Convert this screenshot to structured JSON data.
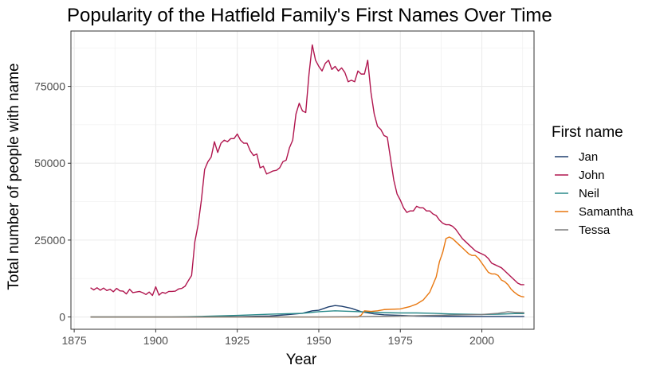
{
  "chart_data": {
    "type": "line",
    "title": "Popularity of the Hatfield Family's First Names Over Time",
    "xlabel": "Year",
    "ylabel": "Total number of people with name",
    "xlim": [
      1874,
      2016
    ],
    "ylim": [
      -4000,
      93000
    ],
    "x_ticks": [
      1875,
      1900,
      1925,
      1950,
      1975,
      2000
    ],
    "y_ticks": [
      0,
      25000,
      50000,
      75000
    ],
    "grid": true,
    "legend_title": "First name",
    "legend_position": "right",
    "series": [
      {
        "name": "Jan",
        "color": "#1f3f6e",
        "points": [
          [
            1880,
            0
          ],
          [
            1910,
            0
          ],
          [
            1925,
            100
          ],
          [
            1935,
            300
          ],
          [
            1940,
            700
          ],
          [
            1945,
            1200
          ],
          [
            1948,
            2000
          ],
          [
            1950,
            2200
          ],
          [
            1953,
            3300
          ],
          [
            1955,
            3700
          ],
          [
            1957,
            3500
          ],
          [
            1960,
            2800
          ],
          [
            1963,
            1700
          ],
          [
            1967,
            1000
          ],
          [
            1970,
            700
          ],
          [
            1975,
            500
          ],
          [
            1980,
            300
          ],
          [
            1990,
            200
          ],
          [
            2000,
            150
          ],
          [
            2013,
            150
          ]
        ]
      },
      {
        "name": "John",
        "color": "#b0154e",
        "points": [
          [
            1880,
            9500
          ],
          [
            1881,
            8800
          ],
          [
            1882,
            9500
          ],
          [
            1883,
            8700
          ],
          [
            1884,
            9400
          ],
          [
            1885,
            8600
          ],
          [
            1886,
            9000
          ],
          [
            1887,
            8200
          ],
          [
            1888,
            9300
          ],
          [
            1889,
            8500
          ],
          [
            1890,
            8400
          ],
          [
            1891,
            7500
          ],
          [
            1892,
            9000
          ],
          [
            1893,
            7900
          ],
          [
            1894,
            8100
          ],
          [
            1895,
            8300
          ],
          [
            1896,
            7900
          ],
          [
            1897,
            7300
          ],
          [
            1898,
            8100
          ],
          [
            1899,
            7000
          ],
          [
            1900,
            9800
          ],
          [
            1901,
            7100
          ],
          [
            1902,
            8000
          ],
          [
            1903,
            7700
          ],
          [
            1904,
            8300
          ],
          [
            1905,
            8300
          ],
          [
            1906,
            8400
          ],
          [
            1907,
            9100
          ],
          [
            1908,
            9300
          ],
          [
            1909,
            10000
          ],
          [
            1910,
            11800
          ],
          [
            1911,
            13500
          ],
          [
            1912,
            24500
          ],
          [
            1913,
            30000
          ],
          [
            1914,
            38000
          ],
          [
            1915,
            48000
          ],
          [
            1916,
            50500
          ],
          [
            1917,
            52000
          ],
          [
            1918,
            57000
          ],
          [
            1919,
            53500
          ],
          [
            1920,
            56500
          ],
          [
            1921,
            57500
          ],
          [
            1922,
            57000
          ],
          [
            1923,
            58000
          ],
          [
            1924,
            58000
          ],
          [
            1925,
            59500
          ],
          [
            1926,
            57500
          ],
          [
            1927,
            56500
          ],
          [
            1928,
            56500
          ],
          [
            1929,
            54000
          ],
          [
            1930,
            52500
          ],
          [
            1931,
            53000
          ],
          [
            1932,
            48500
          ],
          [
            1933,
            49000
          ],
          [
            1934,
            46500
          ],
          [
            1935,
            47000
          ],
          [
            1936,
            47500
          ],
          [
            1937,
            47700
          ],
          [
            1938,
            48500
          ],
          [
            1939,
            50500
          ],
          [
            1940,
            51000
          ],
          [
            1941,
            55000
          ],
          [
            1942,
            57500
          ],
          [
            1943,
            66000
          ],
          [
            1944,
            69500
          ],
          [
            1945,
            67000
          ],
          [
            1946,
            66500
          ],
          [
            1947,
            79000
          ],
          [
            1948,
            88500
          ],
          [
            1949,
            83500
          ],
          [
            1950,
            81500
          ],
          [
            1951,
            80000
          ],
          [
            1952,
            82500
          ],
          [
            1953,
            83500
          ],
          [
            1954,
            80500
          ],
          [
            1955,
            81500
          ],
          [
            1956,
            80000
          ],
          [
            1957,
            81000
          ],
          [
            1958,
            79500
          ],
          [
            1959,
            76500
          ],
          [
            1960,
            77000
          ],
          [
            1961,
            76500
          ],
          [
            1962,
            80000
          ],
          [
            1963,
            79000
          ],
          [
            1964,
            79000
          ],
          [
            1965,
            83500
          ],
          [
            1966,
            73000
          ],
          [
            1967,
            66000
          ],
          [
            1968,
            62000
          ],
          [
            1969,
            61000
          ],
          [
            1970,
            59000
          ],
          [
            1971,
            58500
          ],
          [
            1972,
            51500
          ],
          [
            1973,
            44500
          ],
          [
            1974,
            40000
          ],
          [
            1975,
            38000
          ],
          [
            1976,
            35500
          ],
          [
            1977,
            34000
          ],
          [
            1978,
            34500
          ],
          [
            1979,
            34500
          ],
          [
            1980,
            36000
          ],
          [
            1981,
            35500
          ],
          [
            1982,
            35500
          ],
          [
            1983,
            34500
          ],
          [
            1984,
            34500
          ],
          [
            1985,
            33500
          ],
          [
            1986,
            33000
          ],
          [
            1987,
            31500
          ],
          [
            1988,
            30500
          ],
          [
            1989,
            30000
          ],
          [
            1990,
            30000
          ],
          [
            1991,
            29500
          ],
          [
            1992,
            28500
          ],
          [
            1993,
            27000
          ],
          [
            1994,
            25500
          ],
          [
            1995,
            24500
          ],
          [
            1996,
            23500
          ],
          [
            1997,
            22500
          ],
          [
            1998,
            21500
          ],
          [
            1999,
            21000
          ],
          [
            2000,
            20500
          ],
          [
            2001,
            20000
          ],
          [
            2002,
            19000
          ],
          [
            2003,
            17500
          ],
          [
            2004,
            17000
          ],
          [
            2005,
            16500
          ],
          [
            2006,
            16000
          ],
          [
            2007,
            15000
          ],
          [
            2008,
            14000
          ],
          [
            2009,
            13000
          ],
          [
            2010,
            12000
          ],
          [
            2011,
            11000
          ],
          [
            2012,
            10500
          ],
          [
            2013,
            10500
          ]
        ]
      },
      {
        "name": "Neil",
        "color": "#2a8a8a",
        "points": [
          [
            1880,
            0
          ],
          [
            1905,
            0
          ],
          [
            1915,
            200
          ],
          [
            1925,
            500
          ],
          [
            1935,
            900
          ],
          [
            1945,
            1200
          ],
          [
            1950,
            1700
          ],
          [
            1955,
            2000
          ],
          [
            1960,
            1800
          ],
          [
            1965,
            1600
          ],
          [
            1970,
            1400
          ],
          [
            1975,
            1300
          ],
          [
            1980,
            1300
          ],
          [
            1985,
            1200
          ],
          [
            1990,
            1000
          ],
          [
            1995,
            900
          ],
          [
            2000,
            800
          ],
          [
            2005,
            900
          ],
          [
            2010,
            1100
          ],
          [
            2013,
            1100
          ]
        ]
      },
      {
        "name": "Samantha",
        "color": "#e8770f",
        "points": [
          [
            1880,
            0
          ],
          [
            1962,
            0
          ],
          [
            1963,
            600
          ],
          [
            1964,
            2000
          ],
          [
            1966,
            1800
          ],
          [
            1968,
            2000
          ],
          [
            1970,
            2400
          ],
          [
            1975,
            2600
          ],
          [
            1978,
            3400
          ],
          [
            1980,
            4200
          ],
          [
            1982,
            5500
          ],
          [
            1984,
            8000
          ],
          [
            1986,
            13000
          ],
          [
            1987,
            18000
          ],
          [
            1988,
            21000
          ],
          [
            1989,
            25500
          ],
          [
            1990,
            26000
          ],
          [
            1991,
            25500
          ],
          [
            1992,
            24500
          ],
          [
            1993,
            23500
          ],
          [
            1994,
            22500
          ],
          [
            1995,
            21500
          ],
          [
            1996,
            20500
          ],
          [
            1997,
            20000
          ],
          [
            1998,
            20000
          ],
          [
            1999,
            19000
          ],
          [
            2000,
            17500
          ],
          [
            2001,
            16000
          ],
          [
            2002,
            14500
          ],
          [
            2003,
            14000
          ],
          [
            2004,
            14000
          ],
          [
            2005,
            13500
          ],
          [
            2006,
            12000
          ],
          [
            2007,
            11500
          ],
          [
            2008,
            10500
          ],
          [
            2009,
            9000
          ],
          [
            2010,
            8000
          ],
          [
            2011,
            7200
          ],
          [
            2012,
            6700
          ],
          [
            2013,
            6500
          ]
        ]
      },
      {
        "name": "Tessa",
        "color": "#7f7f7f",
        "points": [
          [
            1880,
            0
          ],
          [
            1950,
            0
          ],
          [
            1960,
            100
          ],
          [
            1970,
            200
          ],
          [
            1980,
            400
          ],
          [
            1990,
            600
          ],
          [
            2000,
            800
          ],
          [
            2005,
            1200
          ],
          [
            2008,
            1700
          ],
          [
            2010,
            1500
          ],
          [
            2013,
            1400
          ]
        ]
      }
    ]
  }
}
